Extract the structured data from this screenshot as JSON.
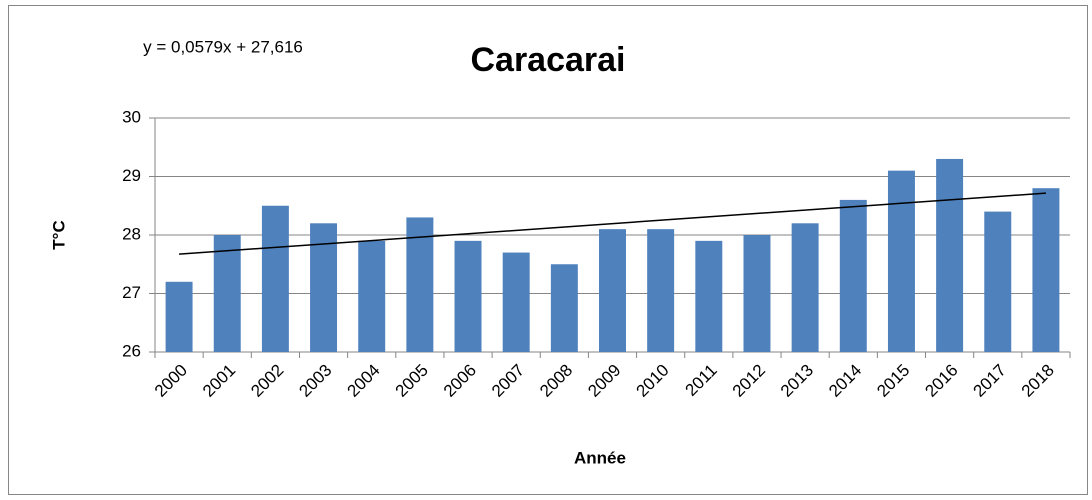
{
  "chart_data": {
    "type": "bar",
    "title": "Caracarai",
    "annotation": "y = 0,0579x + 27,616",
    "x_label": "Année",
    "y_label": "T°C",
    "categories": [
      "2000",
      "2001",
      "2002",
      "2003",
      "2004",
      "2005",
      "2006",
      "2007",
      "2008",
      "2009",
      "2010",
      "2011",
      "2012",
      "2013",
      "2014",
      "2015",
      "2016",
      "2017",
      "2018"
    ],
    "values": [
      27.2,
      28.0,
      28.5,
      28.2,
      27.9,
      28.3,
      27.9,
      27.7,
      27.5,
      28.1,
      28.1,
      27.9,
      28.0,
      28.2,
      28.6,
      29.1,
      29.3,
      28.4,
      28.8
    ],
    "color": "#4f81bd",
    "trendline": true,
    "trendline_color": "#000000",
    "ylim": [
      26,
      30
    ],
    "yticks": [
      26,
      27,
      28,
      29,
      30
    ],
    "grid": true
  }
}
